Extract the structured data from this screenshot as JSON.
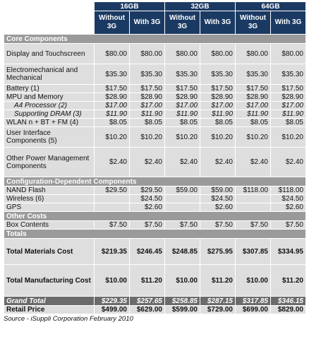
{
  "header": {
    "capacities": [
      "16GB",
      "32GB",
      "64GB"
    ],
    "without_3g": "Without 3G",
    "with_3g": "With 3G"
  },
  "sections": [
    {
      "title": "Core Components",
      "rows": [
        {
          "label": "Display and Touchscreen",
          "values": [
            "$80.00",
            "$80.00",
            "$80.00",
            "$80.00",
            "$80.00",
            "$80.00"
          ]
        },
        {
          "label": "Electromechanical and Mechanical",
          "values": [
            "$35.30",
            "$35.30",
            "$35.30",
            "$35.30",
            "$35.30",
            "$35.30"
          ]
        },
        {
          "label": "Battery (1)",
          "values": [
            "$17.50",
            "$17.50",
            "$17.50",
            "$17.50",
            "$17.50",
            "$17.50"
          ]
        },
        {
          "label": "MPU and Memory",
          "values": [
            "$28.90",
            "$28.90",
            "$28.90",
            "$28.90",
            "$28.90",
            "$28.90"
          ]
        },
        {
          "label": "A4 Processor (2)",
          "values": [
            "$17.00",
            "$17.00",
            "$17.00",
            "$17.00",
            "$17.00",
            "$17.00"
          ],
          "italic": true
        },
        {
          "label": "Supporting DRAM (3)",
          "values": [
            "$11.90",
            "$11.90",
            "$11.90",
            "$11.90",
            "$11.90",
            "$11.90"
          ],
          "italic": true
        },
        {
          "label": "WLAN n + BT + FM (4)",
          "values": [
            "$8.05",
            "$8.05",
            "$8.05",
            "$8.05",
            "$8.05",
            "$8.05"
          ]
        },
        {
          "label": "User Interface Components (5)",
          "values": [
            "$10.20",
            "$10.20",
            "$10.20",
            "$10.20",
            "$10.20",
            "$10.20"
          ]
        },
        {
          "label": "Other Power Management Components",
          "values": [
            "$2.40",
            "$2.40",
            "$2.40",
            "$2.40",
            "$2.40",
            "$2.40"
          ]
        }
      ]
    },
    {
      "title": "Configuration-Dependent Components",
      "rows": [
        {
          "label": "NAND Flash",
          "values": [
            "$29.50",
            "$29.50",
            "$59.00",
            "$59.00",
            "$118.00",
            "$118.00"
          ]
        },
        {
          "label": "Wireless (6)",
          "values": [
            "",
            "$24.50",
            "",
            "$24.50",
            "",
            "$24.50"
          ]
        },
        {
          "label": "GPS",
          "values": [
            "",
            "$2.60",
            "",
            "$2.60",
            "",
            "$2.60"
          ]
        }
      ]
    },
    {
      "title": "Other Costs",
      "rows": [
        {
          "label": "Box Contents",
          "values": [
            "$7.50",
            "$7.50",
            "$7.50",
            "$7.50",
            "$7.50",
            "$7.50"
          ]
        }
      ]
    },
    {
      "title": "Totals",
      "rows": [
        {
          "label": "Total Materials Cost",
          "values": [
            "$219.35",
            "$246.45",
            "$248.85",
            "$275.95",
            "$307.85",
            "$334.95"
          ],
          "bold": true
        },
        {
          "label": "Total Manufacturing Cost",
          "values": [
            "$10.00",
            "$11.20",
            "$10.00",
            "$11.20",
            "$10.00",
            "$11.20"
          ],
          "bold": true
        }
      ]
    }
  ],
  "grand_total": {
    "label": "Grand Total",
    "values": [
      "$229.35",
      "$257.65",
      "$258.85",
      "$287.15",
      "$317.85",
      "$346.15"
    ]
  },
  "retail_price": {
    "label": "Retail Price",
    "values": [
      "$499.00",
      "$629.00",
      "$599.00",
      "$729.00",
      "$699.00",
      "$829.00"
    ]
  },
  "source": "Source - iSuppli Corporation February 2010"
}
